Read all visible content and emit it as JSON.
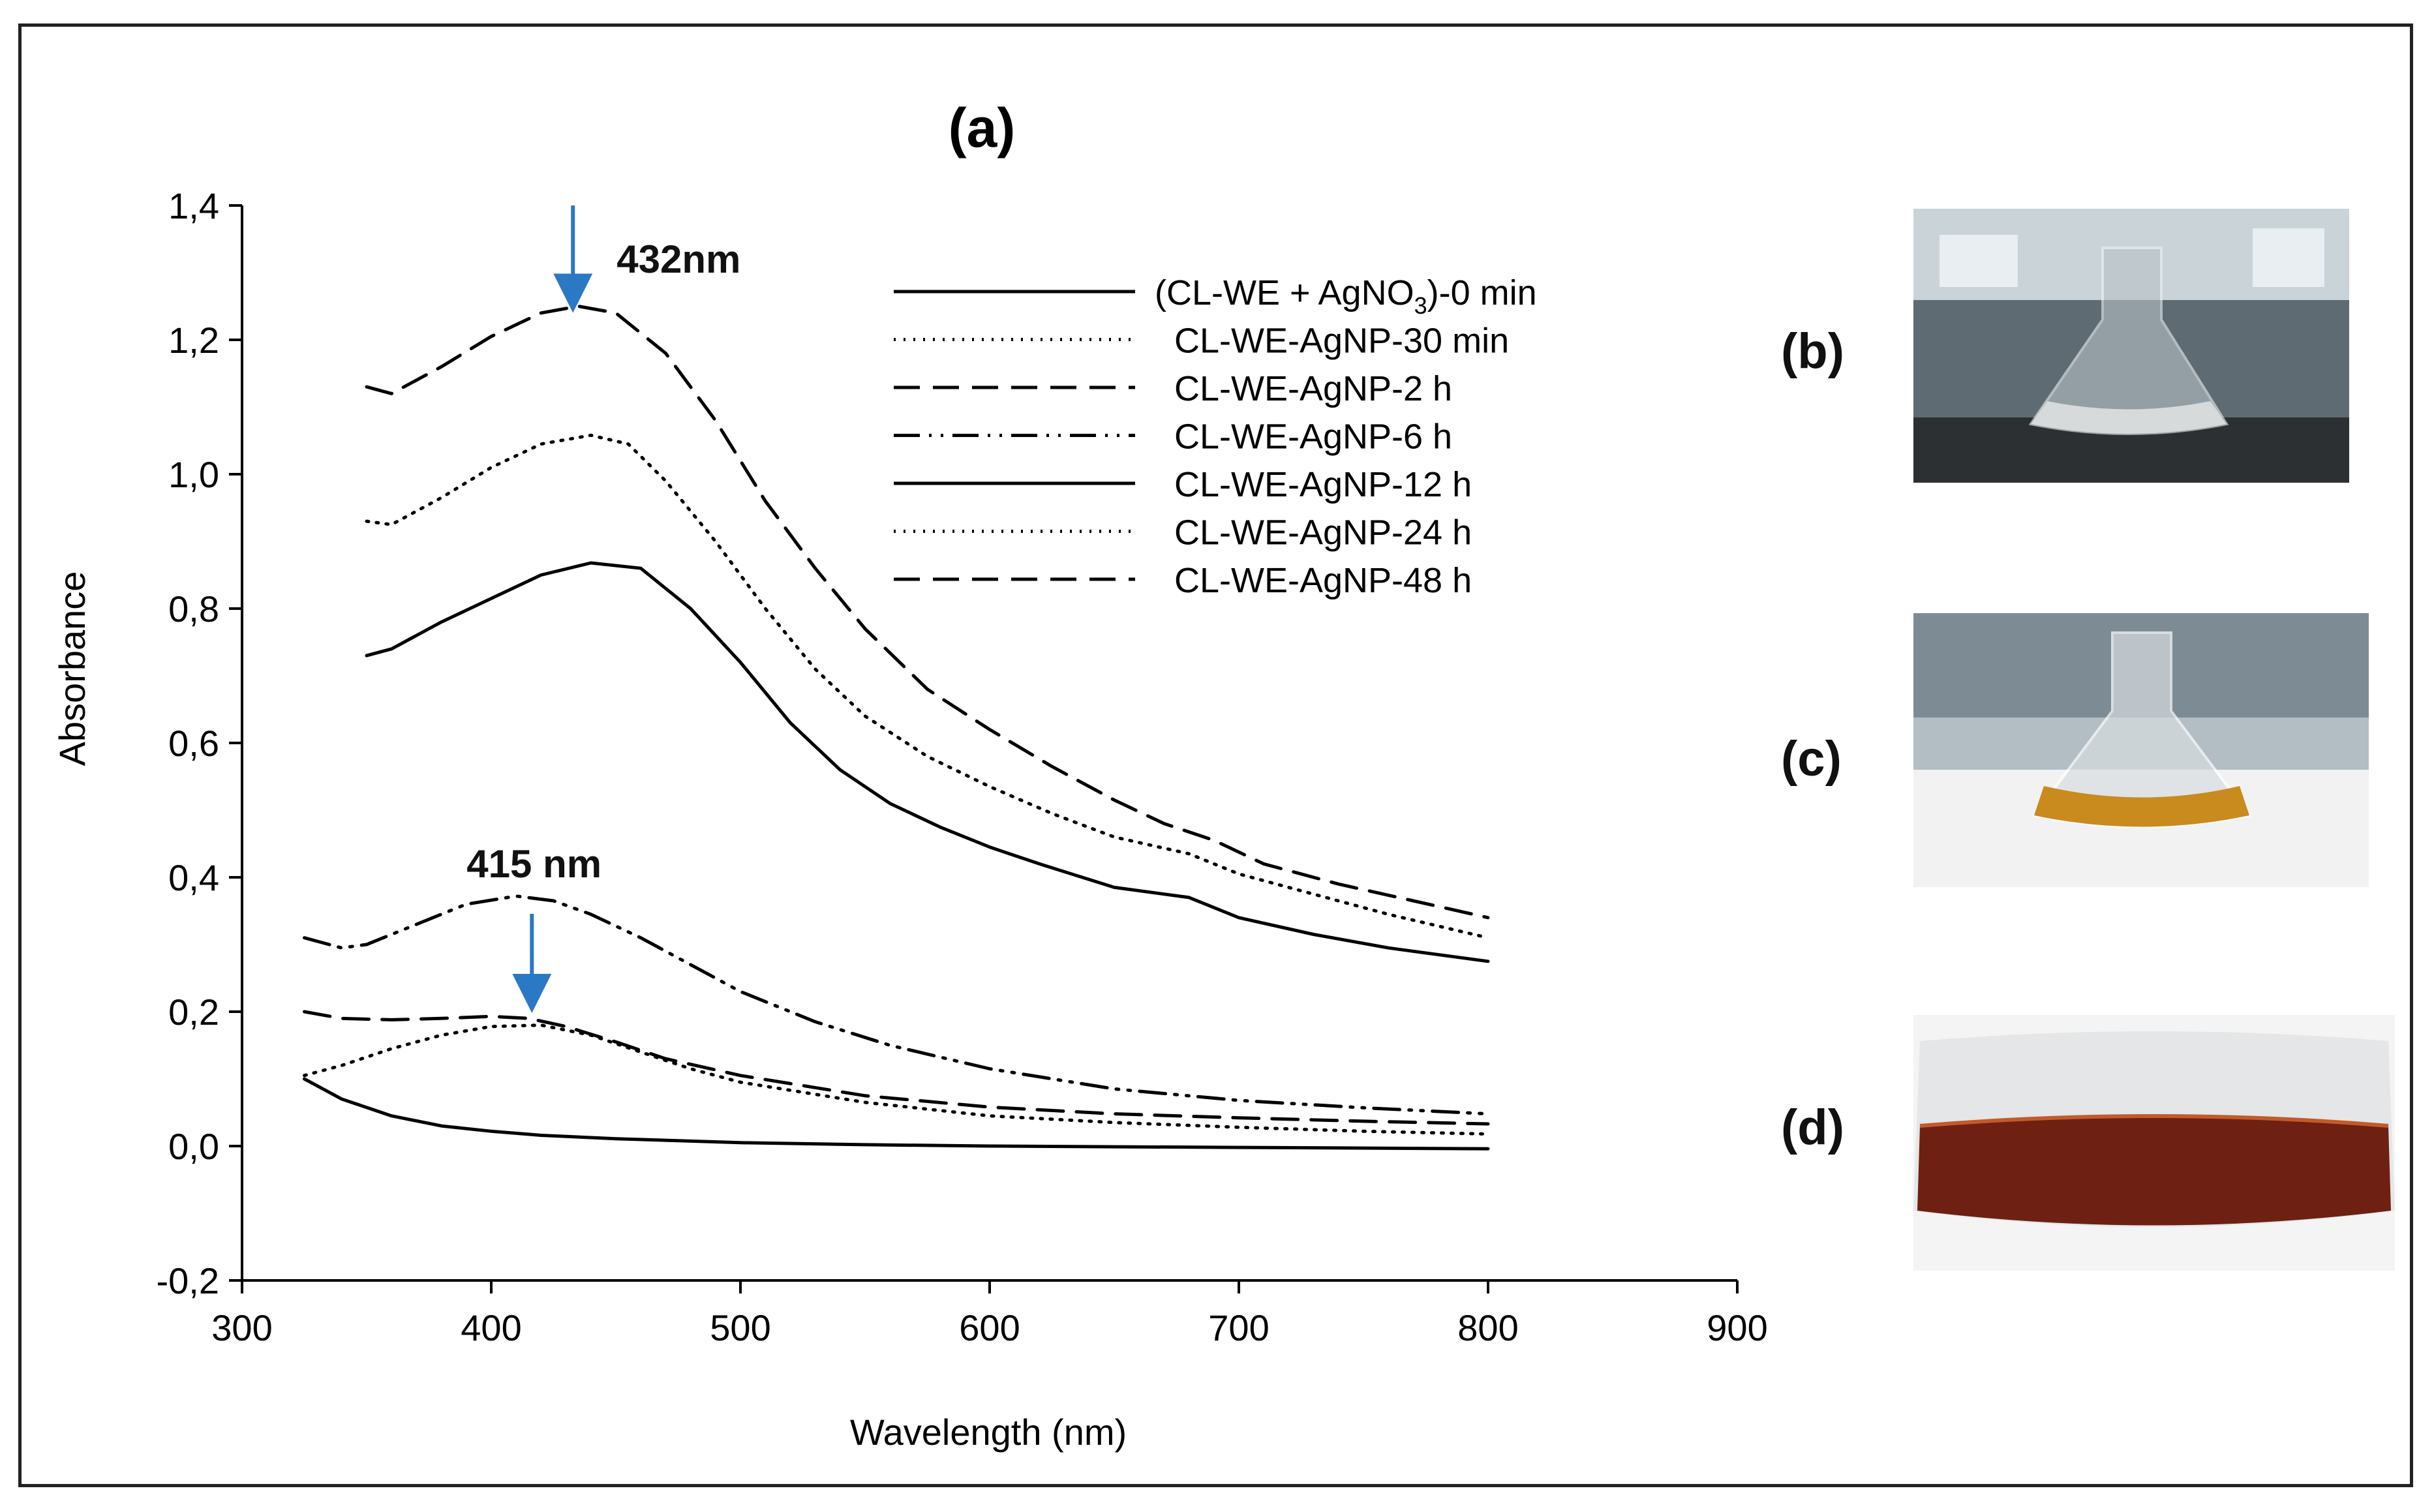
{
  "colors": {
    "axis": "#000000",
    "line": "#000000",
    "arrow": "#2b78c5"
  },
  "chart_data": {
    "type": "line",
    "panel_label": "(a)",
    "xlabel": "Wavelength (nm)",
    "ylabel": "Absorbance",
    "xlim": [
      300,
      900
    ],
    "ylim": [
      -0.2,
      1.4
    ],
    "xticks": [
      "300",
      "400",
      "500",
      "600",
      "700",
      "800",
      "900"
    ],
    "yticks": [
      "-0,2",
      "0,0",
      "0,2",
      "0,4",
      "0,6",
      "0,8",
      "1,0",
      "1,2",
      "1,4"
    ],
    "legend_position": "top-right",
    "annotations": [
      {
        "text": "432nm",
        "x": 432,
        "y": 1.25
      },
      {
        "text": "415 nm",
        "x": 415,
        "y": 0.2
      }
    ],
    "series": [
      {
        "name": "(CL-WE + AgNO3)-0 min",
        "legend_text": "(CL-WE + AgNO",
        "legend_sub": "3",
        "legend_tail": ")-0 min",
        "dash": "solid",
        "points": [
          [
            325,
            0.1
          ],
          [
            340,
            0.07
          ],
          [
            360,
            0.045
          ],
          [
            380,
            0.03
          ],
          [
            400,
            0.022
          ],
          [
            420,
            0.016
          ],
          [
            450,
            0.011
          ],
          [
            500,
            0.005
          ],
          [
            550,
            0.002
          ],
          [
            600,
            0.0
          ],
          [
            700,
            -0.002
          ],
          [
            800,
            -0.004
          ]
        ]
      },
      {
        "name": "CL-WE-AgNP-30 min",
        "legend_text": "CL-WE-AgNP-30 min",
        "dash": "dotted",
        "points": [
          [
            325,
            0.105
          ],
          [
            340,
            0.12
          ],
          [
            360,
            0.145
          ],
          [
            380,
            0.165
          ],
          [
            400,
            0.178
          ],
          [
            420,
            0.18
          ],
          [
            440,
            0.165
          ],
          [
            460,
            0.14
          ],
          [
            480,
            0.115
          ],
          [
            500,
            0.095
          ],
          [
            550,
            0.065
          ],
          [
            600,
            0.045
          ],
          [
            650,
            0.035
          ],
          [
            700,
            0.028
          ],
          [
            750,
            0.022
          ],
          [
            800,
            0.018
          ]
        ]
      },
      {
        "name": "CL-WE-AgNP-2 h",
        "legend_text": "CL-WE-AgNP-2 h",
        "dash": "dashed",
        "points": [
          [
            325,
            0.2
          ],
          [
            340,
            0.19
          ],
          [
            360,
            0.188
          ],
          [
            380,
            0.19
          ],
          [
            400,
            0.193
          ],
          [
            415,
            0.19
          ],
          [
            430,
            0.178
          ],
          [
            450,
            0.155
          ],
          [
            470,
            0.13
          ],
          [
            500,
            0.105
          ],
          [
            550,
            0.075
          ],
          [
            600,
            0.058
          ],
          [
            650,
            0.048
          ],
          [
            700,
            0.042
          ],
          [
            750,
            0.037
          ],
          [
            800,
            0.033
          ]
        ]
      },
      {
        "name": "CL-WE-AgNP-6 h",
        "legend_text": "CL-WE-AgNP-6 h",
        "dash": "dashdotdot",
        "points": [
          [
            325,
            0.31
          ],
          [
            340,
            0.295
          ],
          [
            350,
            0.3
          ],
          [
            370,
            0.33
          ],
          [
            390,
            0.36
          ],
          [
            410,
            0.372
          ],
          [
            425,
            0.365
          ],
          [
            440,
            0.345
          ],
          [
            460,
            0.31
          ],
          [
            480,
            0.27
          ],
          [
            500,
            0.23
          ],
          [
            530,
            0.185
          ],
          [
            560,
            0.15
          ],
          [
            600,
            0.115
          ],
          [
            650,
            0.085
          ],
          [
            700,
            0.068
          ],
          [
            750,
            0.057
          ],
          [
            800,
            0.048
          ]
        ]
      },
      {
        "name": "CL-WE-AgNP-12 h",
        "legend_text": "CL-WE-AgNP-12 h",
        "dash": "solid",
        "points": [
          [
            350,
            0.73
          ],
          [
            360,
            0.74
          ],
          [
            380,
            0.78
          ],
          [
            400,
            0.815
          ],
          [
            420,
            0.85
          ],
          [
            440,
            0.868
          ],
          [
            460,
            0.86
          ],
          [
            480,
            0.8
          ],
          [
            500,
            0.72
          ],
          [
            520,
            0.63
          ],
          [
            540,
            0.56
          ],
          [
            560,
            0.51
          ],
          [
            580,
            0.475
          ],
          [
            600,
            0.445
          ],
          [
            620,
            0.42
          ],
          [
            650,
            0.385
          ],
          [
            680,
            0.37
          ],
          [
            700,
            0.34
          ],
          [
            730,
            0.315
          ],
          [
            760,
            0.295
          ],
          [
            800,
            0.275
          ]
        ]
      },
      {
        "name": "CL-WE-AgNP-24 h",
        "legend_text": "CL-WE-AgNP-24 h",
        "dash": "dotted",
        "points": [
          [
            350,
            0.93
          ],
          [
            360,
            0.925
          ],
          [
            380,
            0.965
          ],
          [
            400,
            1.01
          ],
          [
            420,
            1.045
          ],
          [
            440,
            1.058
          ],
          [
            455,
            1.045
          ],
          [
            470,
            0.99
          ],
          [
            490,
            0.9
          ],
          [
            510,
            0.8
          ],
          [
            530,
            0.71
          ],
          [
            550,
            0.64
          ],
          [
            575,
            0.58
          ],
          [
            600,
            0.535
          ],
          [
            625,
            0.495
          ],
          [
            650,
            0.46
          ],
          [
            680,
            0.435
          ],
          [
            700,
            0.405
          ],
          [
            730,
            0.375
          ],
          [
            760,
            0.345
          ],
          [
            800,
            0.31
          ]
        ]
      },
      {
        "name": "CL-WE-AgNP-48 h",
        "legend_text": "CL-WE-AgNP-48 h",
        "dash": "dashed",
        "points": [
          [
            350,
            1.13
          ],
          [
            360,
            1.12
          ],
          [
            380,
            1.16
          ],
          [
            400,
            1.205
          ],
          [
            420,
            1.24
          ],
          [
            435,
            1.25
          ],
          [
            450,
            1.24
          ],
          [
            470,
            1.18
          ],
          [
            490,
            1.08
          ],
          [
            510,
            0.96
          ],
          [
            530,
            0.86
          ],
          [
            550,
            0.77
          ],
          [
            575,
            0.68
          ],
          [
            600,
            0.62
          ],
          [
            625,
            0.565
          ],
          [
            650,
            0.515
          ],
          [
            670,
            0.48
          ],
          [
            690,
            0.455
          ],
          [
            710,
            0.42
          ],
          [
            740,
            0.39
          ],
          [
            770,
            0.365
          ],
          [
            800,
            0.34
          ]
        ]
      }
    ]
  },
  "photos": [
    {
      "label": "(b)",
      "liquid": "#d6dadb"
    },
    {
      "label": "(c)",
      "liquid": "#c98a1e"
    },
    {
      "label": "(d)",
      "liquid": "#6e2012"
    }
  ]
}
